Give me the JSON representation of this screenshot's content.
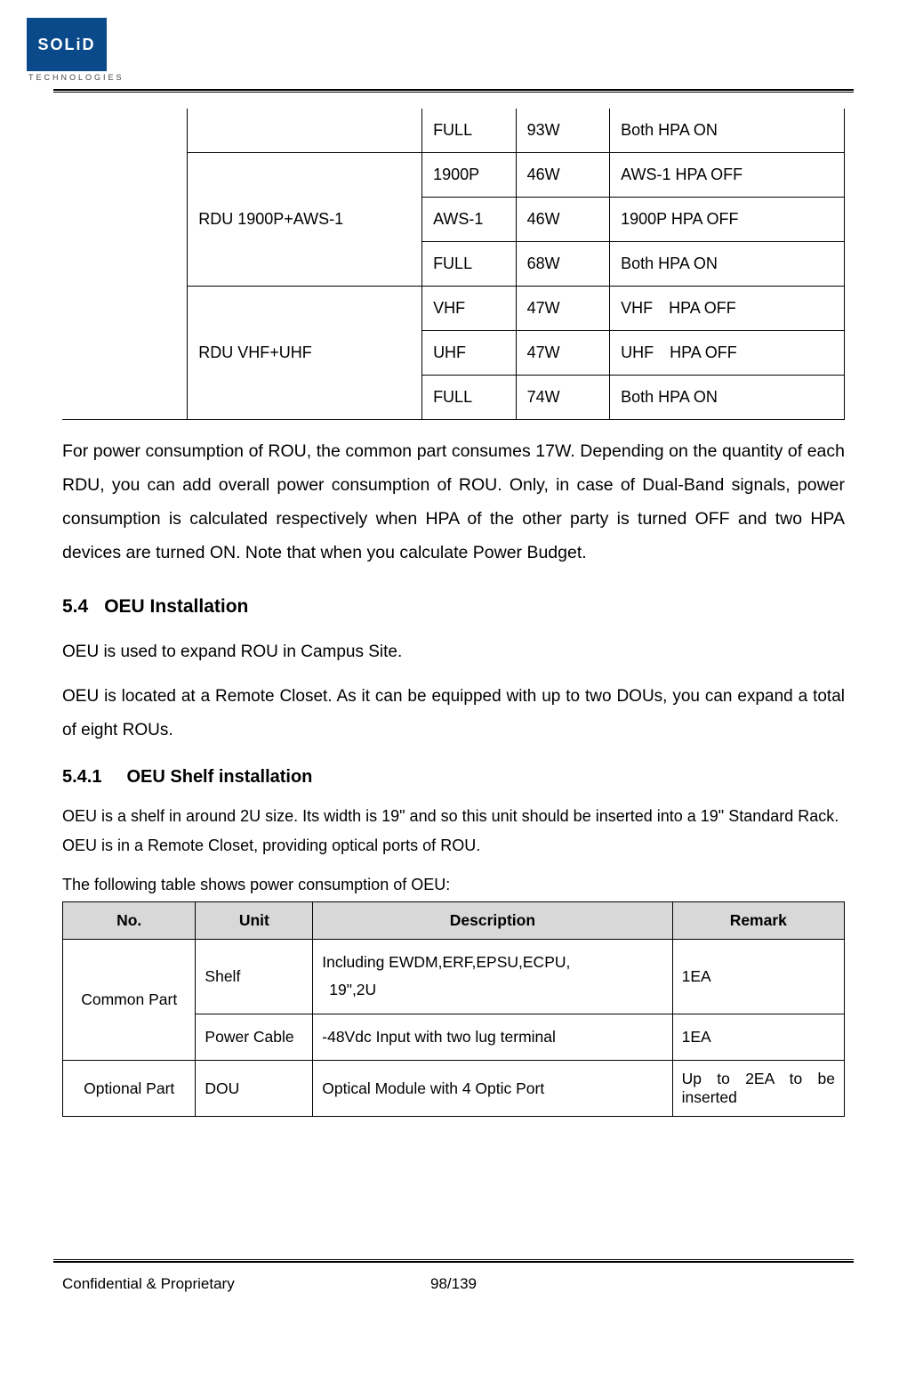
{
  "logo": {
    "text": "SOLiD",
    "sub": "TECHNOLOGIES"
  },
  "table1": {
    "rows": [
      {
        "config": "",
        "mode": "FULL",
        "power": "93W",
        "remark": "Both HPA ON",
        "config_rowspan": 1,
        "blank_first": true
      },
      {
        "config": "RDU 1900P+AWS-1",
        "mode": "1900P",
        "power": "46W",
        "remark": "AWS-1 HPA OFF",
        "config_rowspan": 3
      },
      {
        "mode": "AWS-1",
        "power": "46W",
        "remark": "1900P HPA OFF"
      },
      {
        "mode": "FULL",
        "power": "68W",
        "remark": "Both HPA ON"
      },
      {
        "config": "RDU VHF+UHF",
        "mode": "VHF",
        "power": "47W",
        "remark": "VHF HPA OFF",
        "config_rowspan": 3
      },
      {
        "mode": "UHF",
        "power": "47W",
        "remark": "UHF HPA OFF"
      },
      {
        "mode": "FULL",
        "power": "74W",
        "remark": "Both HPA ON"
      }
    ]
  },
  "para1": "For power consumption of ROU, the common part consumes 17W. Depending on the quantity of each RDU, you can add overall power consumption of ROU. Only, in case of Dual-Band signals, power consumption is calculated respectively when HPA of the other party is turned OFF and two HPA devices are turned ON. Note that when you calculate Power Budget.",
  "sec54_num": "5.4",
  "sec54_title": "OEU Installation",
  "sec54_p1": "OEU is used to expand ROU in Campus Site.",
  "sec54_p2": "OEU is located at a Remote Closet. As it can be equipped with up to two DOUs, you can expand a total of eight ROUs.",
  "sec541_num": "5.4.1",
  "sec541_title": "OEU Shelf installation",
  "sec541_p1": "OEU is a shelf in around 2U size. Its width is 19\" and so this unit should be inserted into a 19\" Standard Rack. OEU is in a Remote Closet, providing optical ports of ROU.",
  "sec541_p2": "The following table shows power consumption of OEU:",
  "table2": {
    "headers": {
      "no": "No.",
      "unit": "Unit",
      "desc": "Description",
      "remark": "Remark"
    },
    "rows": [
      {
        "no": "Common Part",
        "no_rowspan": 2,
        "unit": "Shelf",
        "desc_l1": "Including EWDM,ERF,EPSU,ECPU,",
        "desc_l2": "19\",2U",
        "remark": "1EA"
      },
      {
        "unit": "Power Cable",
        "desc_l1": "-48Vdc Input with two lug terminal",
        "desc_l2": "",
        "remark": "1EA"
      },
      {
        "no": "Optional Part",
        "no_rowspan": 1,
        "unit": "DOU",
        "desc_l1": "Optical Module with 4 Optic Port",
        "desc_l2": "",
        "remark": "Up to 2EA to be inserted"
      }
    ]
  },
  "footer": {
    "left": "Confidential & Proprietary",
    "center": "98/139"
  }
}
